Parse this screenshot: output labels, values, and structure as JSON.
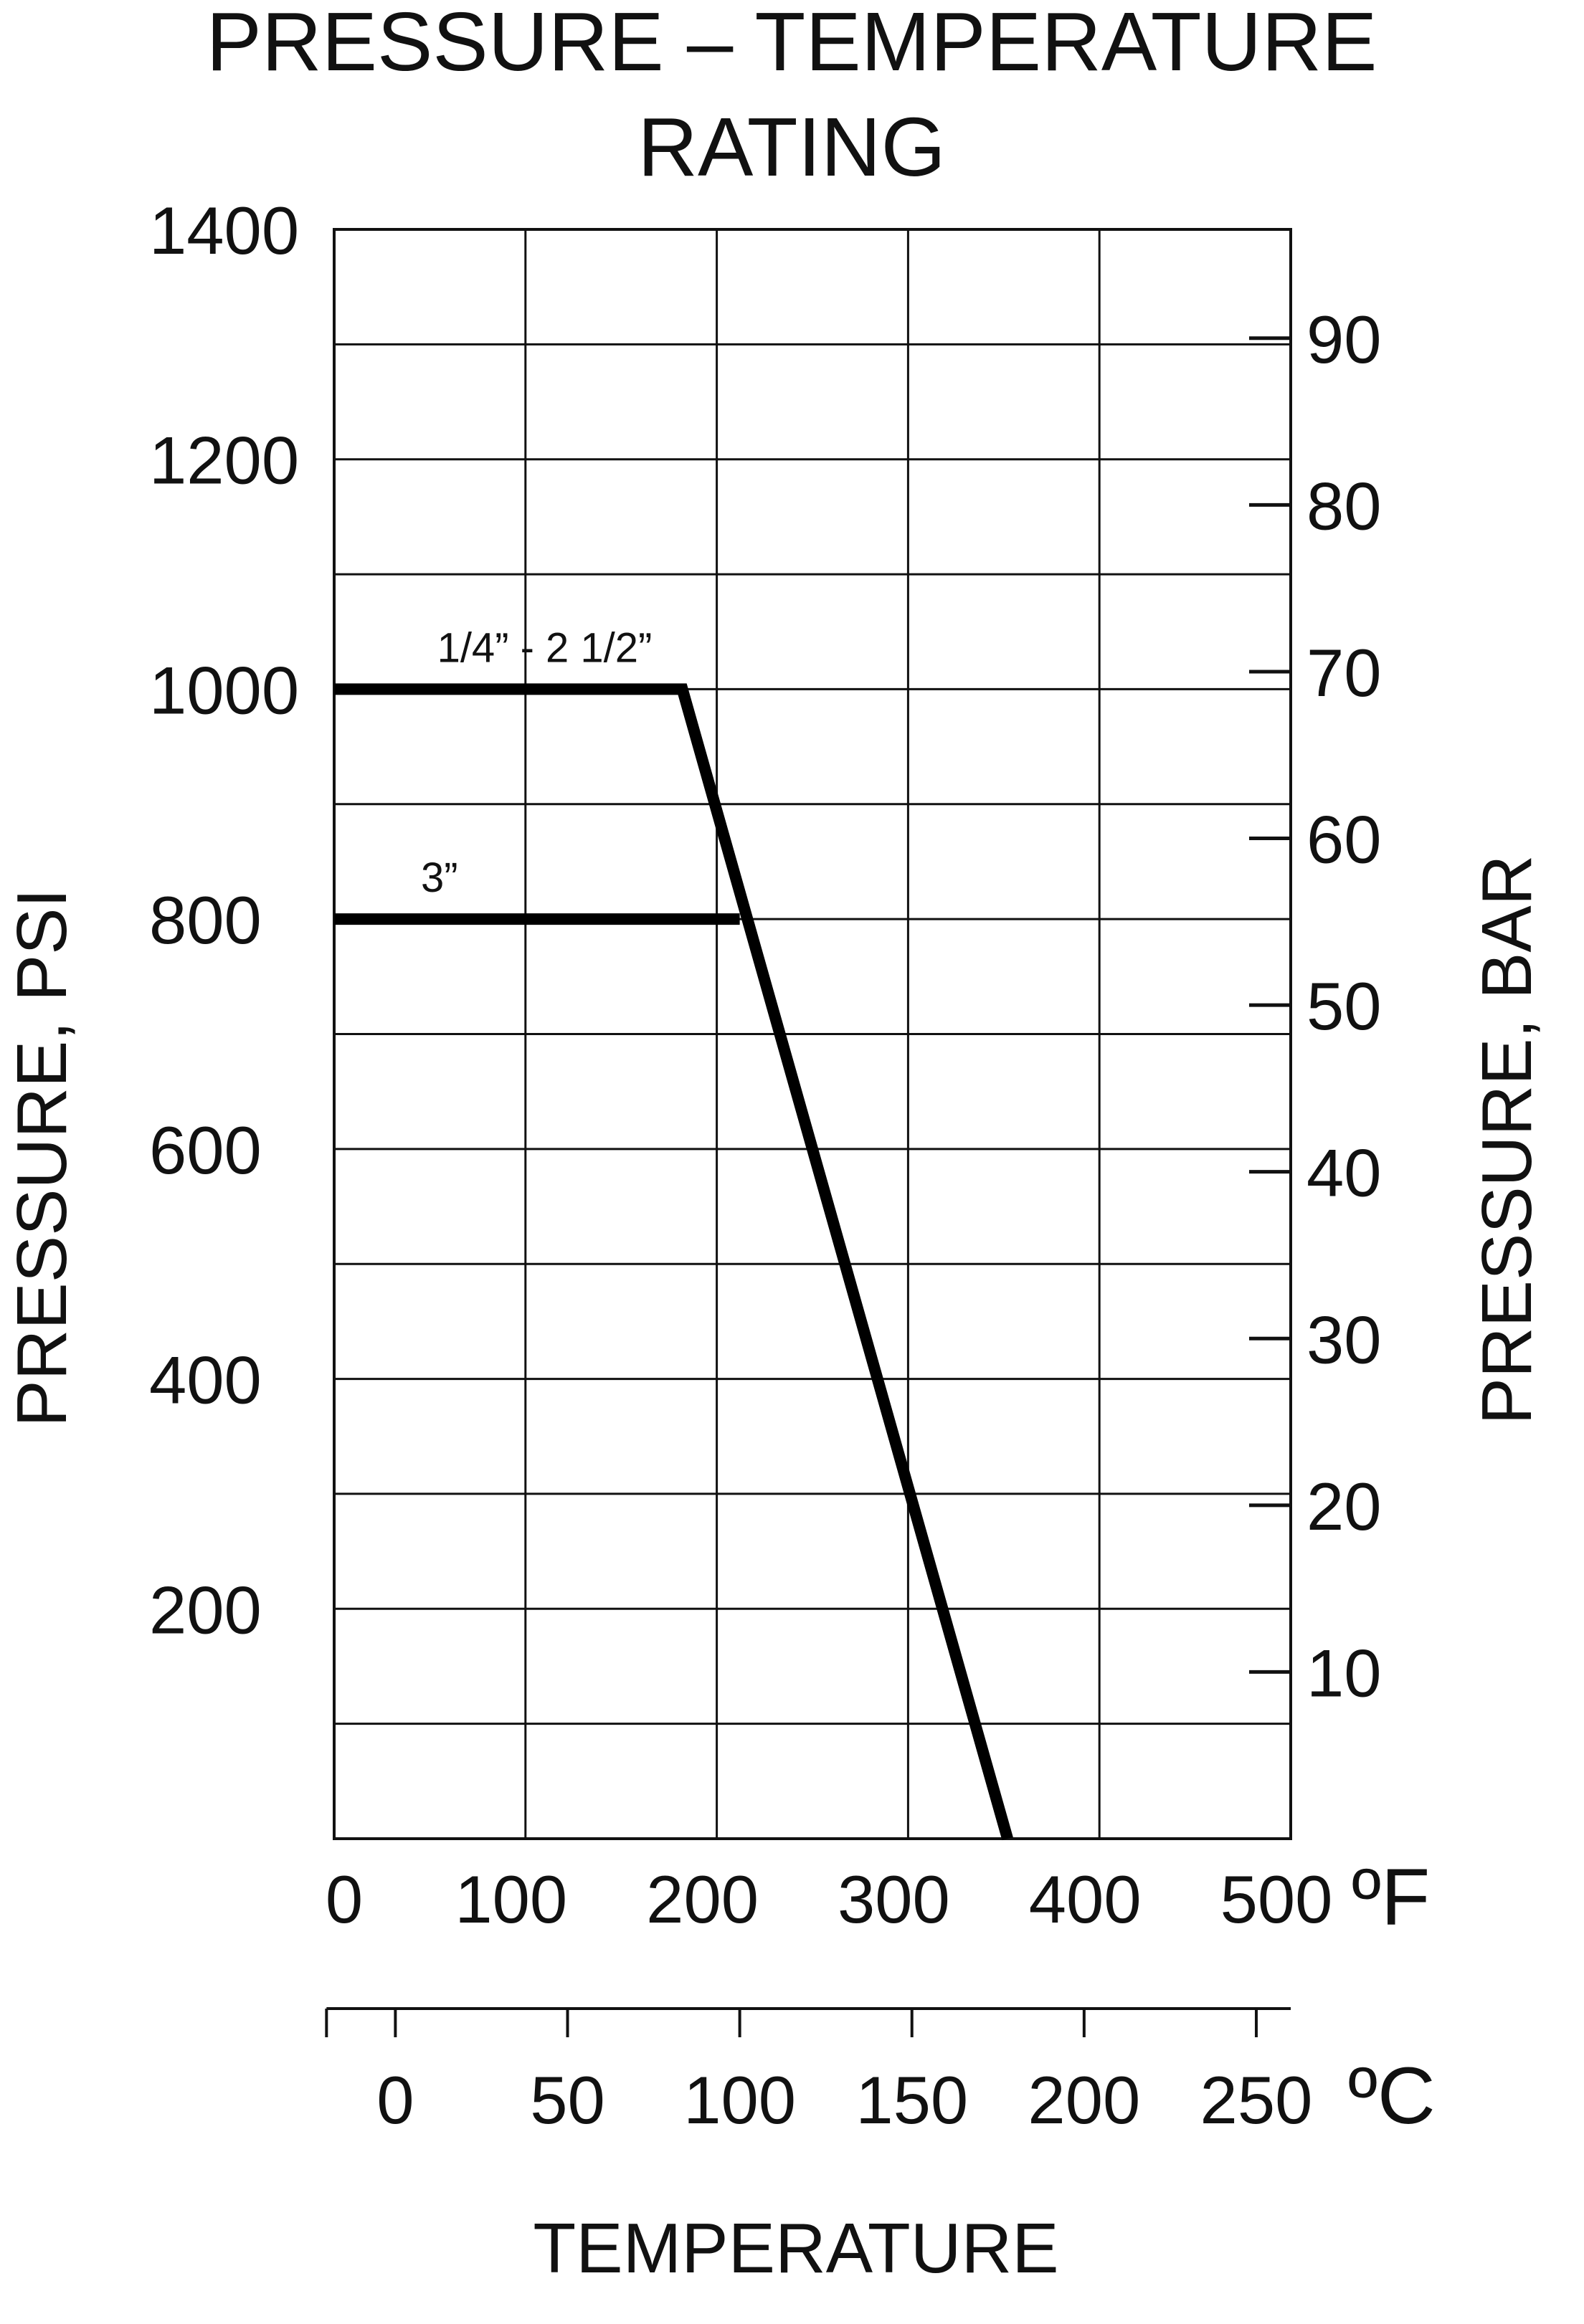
{
  "chart_data": {
    "type": "line",
    "title_line1": "PRESSURE – TEMPERATURE",
    "title_line2": "RATING",
    "xlabel": "TEMPERATURE",
    "ylabel_left": "PRESSURE, PSI",
    "ylabel_right": "PRESSURE, BAR",
    "x_unit": "ºF",
    "x2_unit": "ºC",
    "xlim": [
      0,
      500
    ],
    "ylim": [
      0,
      1400
    ],
    "x_grid_step": 100,
    "y_grid_step": 100,
    "grid": true,
    "x_ticks": [
      0,
      100,
      200,
      300,
      400,
      500
    ],
    "y_ticks": [
      200,
      400,
      600,
      800,
      1000,
      1200,
      1400
    ],
    "x2_ticks": [
      0,
      50,
      100,
      150,
      200,
      250
    ],
    "x2_range": [
      -20,
      260
    ],
    "y2_ticks": [
      10,
      20,
      30,
      40,
      50,
      60,
      70,
      80,
      90
    ],
    "series": [
      {
        "name": "1/4” - 2 1/2”",
        "points": [
          [
            0,
            1000
          ],
          [
            182,
            1000
          ],
          [
            352,
            0
          ]
        ]
      },
      {
        "name": "3”",
        "points": [
          [
            0,
            800
          ],
          [
            212,
            800
          ]
        ]
      }
    ]
  }
}
